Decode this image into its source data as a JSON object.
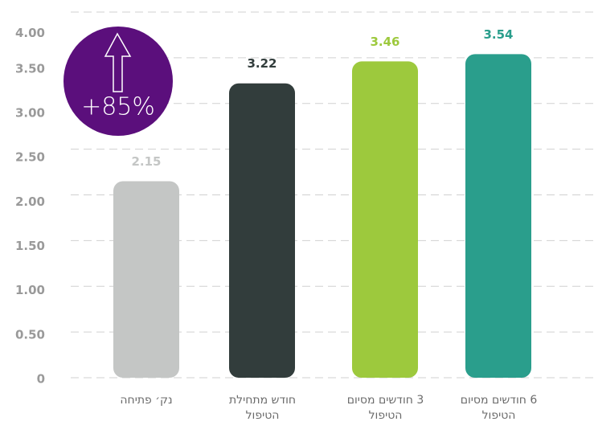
{
  "chart_data": {
    "type": "bar",
    "categories": [
      "נק׳ פתיחה",
      "חודש מתחילת הטיפול",
      "3 חודשים מסיום הטיפול",
      "6 חודשים מסיום הטיפול"
    ],
    "values": [
      2.15,
      3.22,
      3.46,
      3.54
    ],
    "colors": [
      "#c4c6c5",
      "#323d3c",
      "#9dc93d",
      "#2a9e8c"
    ],
    "ylim": [
      0,
      4
    ],
    "yticks": [
      0,
      {
        "value": 0.5,
        "label": "0.50"
      },
      {
        "value": 1,
        "label": "1.00"
      },
      {
        "value": 1.5,
        "label": "1.50"
      },
      {
        "value": 2,
        "label": "2.00"
      },
      {
        "value": 2.5,
        "label": "2.50"
      },
      {
        "value": 3,
        "label": "3.00"
      },
      {
        "value": 3.5,
        "label": "3.50"
      },
      {
        "value": 4,
        "label": "4.00"
      }
    ],
    "grid": true,
    "annotation": "+85%",
    "annotation_color": "#5b0f7c"
  }
}
